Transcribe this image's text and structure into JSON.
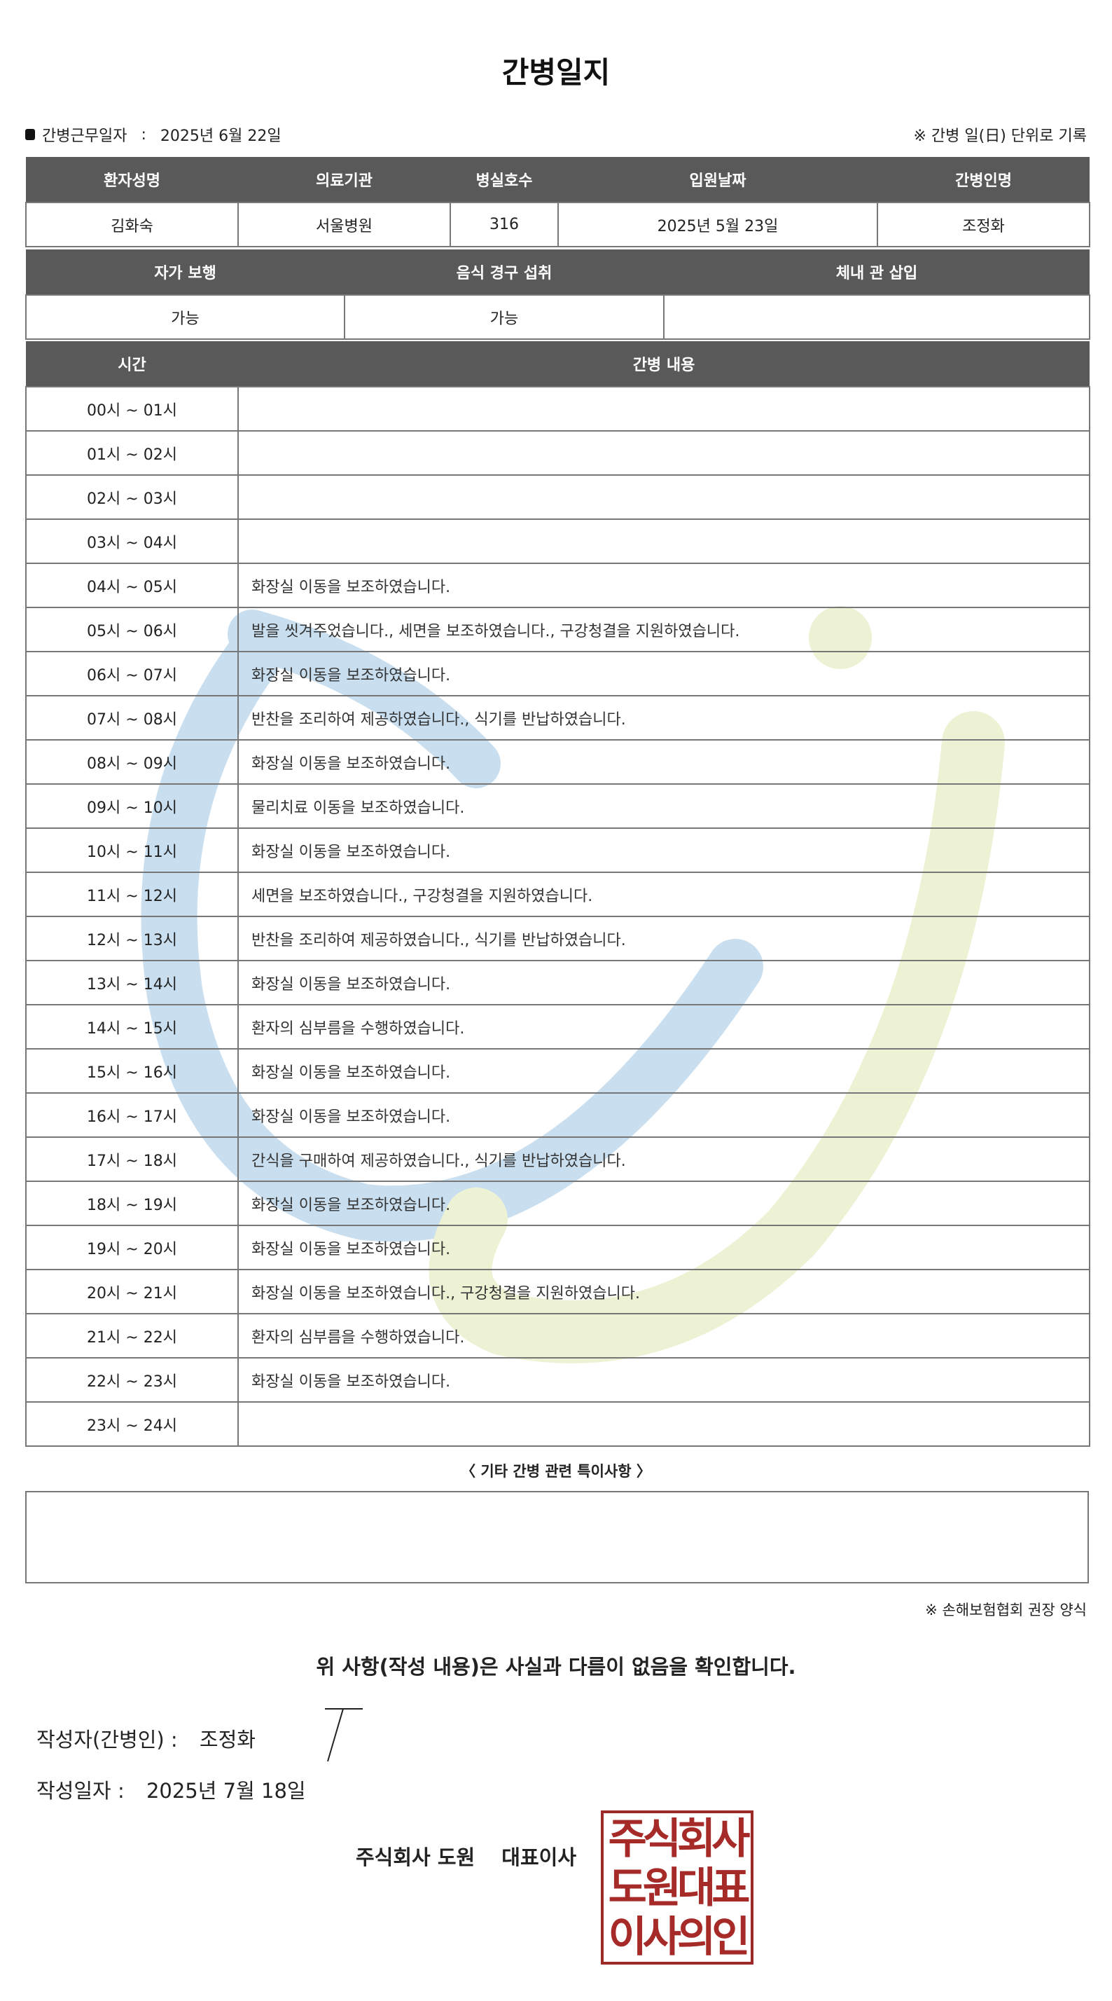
{
  "title": "간병일지",
  "info": {
    "work_date_label": "간병근무일자",
    "separator": ":",
    "work_date": "2025년 6월 22일",
    "record_note": "※ 간병 일(日) 단위로 기록"
  },
  "patient_table": {
    "headers": [
      "환자성명",
      "의료기관",
      "병실호수",
      "입원날짜",
      "간병인명"
    ],
    "values": [
      "김화숙",
      "서울병원",
      "316",
      "2025년 5월 23일",
      "조정화"
    ]
  },
  "status_table": {
    "headers": [
      "자가 보행",
      "음식 경구 섭취",
      "체내 관 삽입"
    ],
    "values": [
      "가능",
      "가능",
      ""
    ]
  },
  "log_table": {
    "headers": [
      "시간",
      "간병 내용"
    ],
    "rows": [
      {
        "time": "00시 ~ 01시",
        "content": ""
      },
      {
        "time": "01시 ~ 02시",
        "content": ""
      },
      {
        "time": "02시 ~ 03시",
        "content": ""
      },
      {
        "time": "03시 ~ 04시",
        "content": ""
      },
      {
        "time": "04시 ~ 05시",
        "content": "화장실 이동을 보조하였습니다."
      },
      {
        "time": "05시 ~ 06시",
        "content": "발을 씻겨주었습니다., 세면을 보조하였습니다., 구강청결을 지원하였습니다."
      },
      {
        "time": "06시 ~ 07시",
        "content": "화장실 이동을 보조하였습니다."
      },
      {
        "time": "07시 ~ 08시",
        "content": "반찬을 조리하여 제공하였습니다., 식기를 반납하였습니다."
      },
      {
        "time": "08시 ~ 09시",
        "content": "화장실 이동을 보조하였습니다."
      },
      {
        "time": "09시 ~ 10시",
        "content": "물리치료 이동을 보조하였습니다."
      },
      {
        "time": "10시 ~ 11시",
        "content": "화장실 이동을 보조하였습니다."
      },
      {
        "time": "11시 ~ 12시",
        "content": "세면을 보조하였습니다., 구강청결을 지원하였습니다."
      },
      {
        "time": "12시 ~ 13시",
        "content": "반찬을 조리하여 제공하였습니다., 식기를 반납하였습니다."
      },
      {
        "time": "13시 ~ 14시",
        "content": "화장실 이동을 보조하였습니다."
      },
      {
        "time": "14시 ~ 15시",
        "content": "환자의 심부름을 수행하였습니다."
      },
      {
        "time": "15시 ~ 16시",
        "content": "화장실 이동을 보조하였습니다."
      },
      {
        "time": "16시 ~ 17시",
        "content": "화장실 이동을 보조하였습니다."
      },
      {
        "time": "17시 ~ 18시",
        "content": "간식을 구매하여 제공하였습니다., 식기를 반납하였습니다."
      },
      {
        "time": "18시 ~ 19시",
        "content": "화장실 이동을 보조하였습니다."
      },
      {
        "time": "19시 ~ 20시",
        "content": "화장실 이동을 보조하였습니다."
      },
      {
        "time": "20시 ~ 21시",
        "content": "화장실 이동을 보조하였습니다., 구강청결을 지원하였습니다."
      },
      {
        "time": "21시 ~ 22시",
        "content": "환자의 심부름을 수행하였습니다."
      },
      {
        "time": "22시 ~ 23시",
        "content": "화장실 이동을 보조하였습니다."
      },
      {
        "time": "23시 ~ 24시",
        "content": ""
      }
    ]
  },
  "special": {
    "title": "〈 기타 간병 관련 특이사항 〉",
    "content": ""
  },
  "form_note": "※ 손해보험협회 권장 양식",
  "confirmation": "위 사항(작성 내용)은 사실과 다름이 없음을 확인합니다.",
  "writer": {
    "label": "작성자(간병인) :",
    "name": "조정화"
  },
  "written_date": {
    "label": "작성일자 :",
    "value": "2025년 7월 18일"
  },
  "company": {
    "name": "주식회사 도원",
    "title": "대표이사"
  },
  "stamp": {
    "text": "주식회사도원대표이사의인",
    "color": "#a52a28"
  },
  "colors": {
    "header_bg": "#595959",
    "watermark_blue": "#c9dff0",
    "watermark_green": "#eef2d4"
  }
}
